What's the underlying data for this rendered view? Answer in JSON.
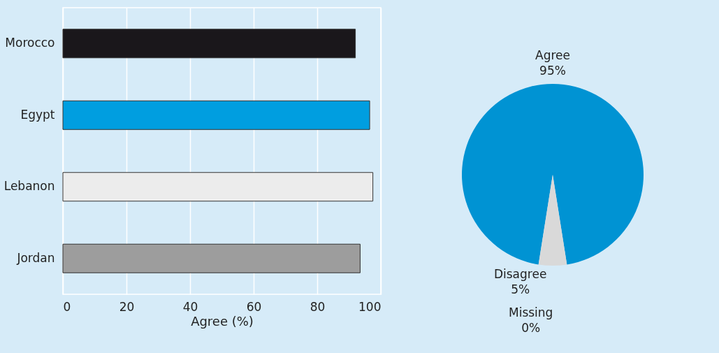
{
  "chart_data": [
    {
      "type": "bar",
      "orientation": "horizontal",
      "categories": [
        "Morocco",
        "Egypt",
        "Lebanon",
        "Jordan"
      ],
      "values": [
        92,
        96.5,
        97.5,
        93.5
      ],
      "colors": [
        "#1a171b",
        "#009ee0",
        "#ececec",
        "#9d9d9d"
      ],
      "xlim": [
        0,
        100
      ],
      "xticks": [
        0,
        20,
        40,
        60,
        80,
        100
      ],
      "xlabel": "Agree (%)",
      "grid": "x"
    },
    {
      "type": "pie",
      "categories": [
        "Agree",
        "Disagree",
        "Missing"
      ],
      "values": [
        95,
        5,
        0
      ],
      "colors": [
        "#0093d3",
        "#d9d9d9",
        "#a8a8a8"
      ],
      "value_labels": [
        "95%",
        "5%",
        "0%"
      ]
    }
  ]
}
